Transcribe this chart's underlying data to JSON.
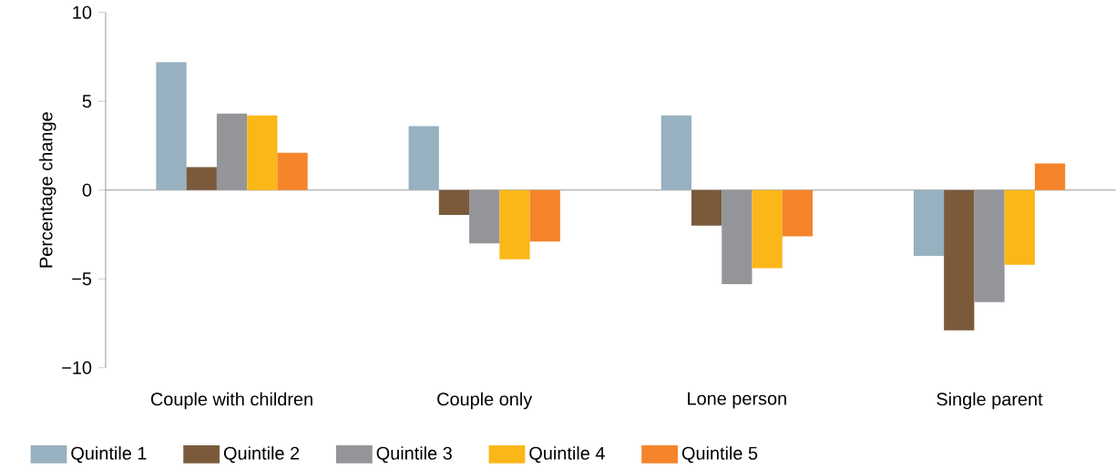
{
  "chart_data": {
    "type": "bar",
    "ylabel": "Percentage change",
    "categories": [
      "Couple with children",
      "Couple only",
      "Lone person",
      "Single parent"
    ],
    "series": [
      {
        "name": "Quintile 1",
        "color": "#97b1c0",
        "values": [
          7.2,
          3.6,
          4.2,
          -3.7
        ]
      },
      {
        "name": "Quintile 2",
        "color": "#7b5a3c",
        "values": [
          1.3,
          -1.4,
          -2.0,
          -7.9
        ]
      },
      {
        "name": "Quintile 3",
        "color": "#939598",
        "values": [
          4.3,
          -3.0,
          -5.3,
          -6.3
        ]
      },
      {
        "name": "Quintile 4",
        "color": "#fbb718",
        "values": [
          4.2,
          -3.9,
          -4.4,
          -4.2
        ]
      },
      {
        "name": "Quintile 5",
        "color": "#f5842a",
        "values": [
          2.1,
          -2.9,
          -2.6,
          1.5
        ]
      }
    ],
    "ylim": [
      -10,
      10
    ],
    "yticks": [
      {
        "value": -10,
        "label": "−10"
      },
      {
        "value": -5,
        "label": "−5"
      },
      0,
      5,
      10
    ],
    "legend": "bottom"
  }
}
